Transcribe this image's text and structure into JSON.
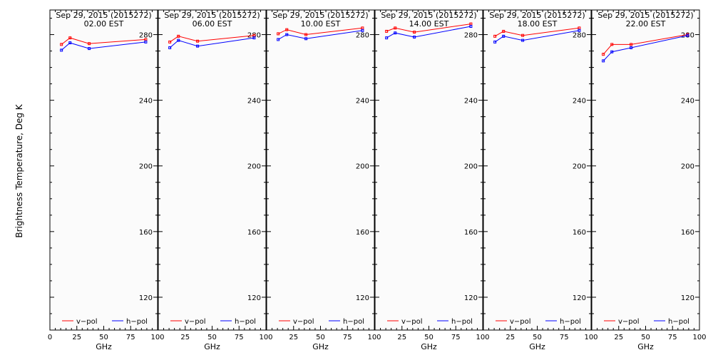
{
  "ylabel": "Brightness Temperature, Deg K",
  "xlabel": "GHz",
  "legend": {
    "v_label": "v−pol",
    "h_label": "h−pol",
    "v_color": "#ff0000",
    "h_color": "#0000ff"
  },
  "chart_data": [
    {
      "type": "line",
      "title": "Sep 29, 2015 (2015272)",
      "subtitle": "02.00 EST",
      "xlim": [
        0,
        100
      ],
      "ylim": [
        100,
        295
      ],
      "xticks": [
        "0",
        "25",
        "50",
        "75",
        "100"
      ],
      "yticks": [
        "120",
        "160",
        "200",
        "240",
        "280"
      ],
      "x": [
        10.7,
        18.7,
        36.5,
        89.0
      ],
      "series": [
        {
          "name": "v−pol",
          "values": [
            274,
            278,
            274.5,
            277
          ]
        },
        {
          "name": "h−pol",
          "values": [
            270.5,
            275,
            271.5,
            275.5
          ]
        }
      ],
      "legend_position": "bottom"
    },
    {
      "type": "line",
      "title": "Sep 29, 2015 (2015272)",
      "subtitle": "06.00 EST",
      "xlim": [
        0,
        100
      ],
      "ylim": [
        100,
        295
      ],
      "xticks": [
        "0",
        "25",
        "50",
        "75",
        "100"
      ],
      "yticks": [
        "120",
        "160",
        "200",
        "240",
        "280"
      ],
      "x": [
        10.7,
        18.7,
        36.5,
        89.0
      ],
      "series": [
        {
          "name": "v−pol",
          "values": [
            275.5,
            279,
            276,
            279.5
          ]
        },
        {
          "name": "h−pol",
          "values": [
            272,
            276.5,
            273,
            278
          ]
        }
      ],
      "legend_position": "bottom"
    },
    {
      "type": "line",
      "title": "Sep 29, 2015 (2015272)",
      "subtitle": "10.00 EST",
      "xlim": [
        0,
        100
      ],
      "ylim": [
        100,
        295
      ],
      "xticks": [
        "0",
        "25",
        "50",
        "75",
        "100"
      ],
      "yticks": [
        "120",
        "160",
        "200",
        "240",
        "280"
      ],
      "x": [
        10.7,
        18.7,
        36.5,
        89.0
      ],
      "series": [
        {
          "name": "v−pol",
          "values": [
            280.5,
            283,
            280,
            284
          ]
        },
        {
          "name": "h−pol",
          "values": [
            277,
            280,
            277.5,
            282.5
          ]
        }
      ],
      "legend_position": "bottom"
    },
    {
      "type": "line",
      "title": "Sep 29, 2015 (2015272)",
      "subtitle": "14.00 EST",
      "xlim": [
        0,
        100
      ],
      "ylim": [
        100,
        295
      ],
      "xticks": [
        "0",
        "25",
        "50",
        "75",
        "100"
      ],
      "yticks": [
        "120",
        "160",
        "200",
        "240",
        "280"
      ],
      "x": [
        10.7,
        18.7,
        36.5,
        89.0
      ],
      "series": [
        {
          "name": "v−pol",
          "values": [
            282,
            284,
            281.5,
            286.5
          ]
        },
        {
          "name": "h−pol",
          "values": [
            278,
            281,
            278.5,
            285
          ]
        }
      ],
      "legend_position": "bottom"
    },
    {
      "type": "line",
      "title": "Sep 29, 2015 (2015272)",
      "subtitle": "18.00 EST",
      "xlim": [
        0,
        100
      ],
      "ylim": [
        100,
        295
      ],
      "xticks": [
        "0",
        "25",
        "50",
        "75",
        "100"
      ],
      "yticks": [
        "120",
        "160",
        "200",
        "240",
        "280"
      ],
      "x": [
        10.7,
        18.7,
        36.5,
        89.0
      ],
      "series": [
        {
          "name": "v−pol",
          "values": [
            279,
            282,
            279.5,
            284
          ]
        },
        {
          "name": "h−pol",
          "values": [
            275.5,
            279,
            276.5,
            282.5
          ]
        }
      ],
      "legend_position": "bottom"
    },
    {
      "type": "line",
      "title": "Sep 29, 2015 (2015272)",
      "subtitle": "22.00 EST",
      "xlim": [
        0,
        100
      ],
      "ylim": [
        100,
        295
      ],
      "xticks": [
        "0",
        "25",
        "50",
        "75",
        "100"
      ],
      "yticks": [
        "120",
        "160",
        "200",
        "240",
        "280"
      ],
      "x": [
        10.7,
        18.7,
        36.5,
        89.0
      ],
      "series": [
        {
          "name": "v−pol",
          "values": [
            268,
            274,
            274,
            280
          ]
        },
        {
          "name": "h−pol",
          "values": [
            264,
            269.5,
            272,
            279.5
          ]
        }
      ],
      "legend_position": "bottom"
    }
  ]
}
